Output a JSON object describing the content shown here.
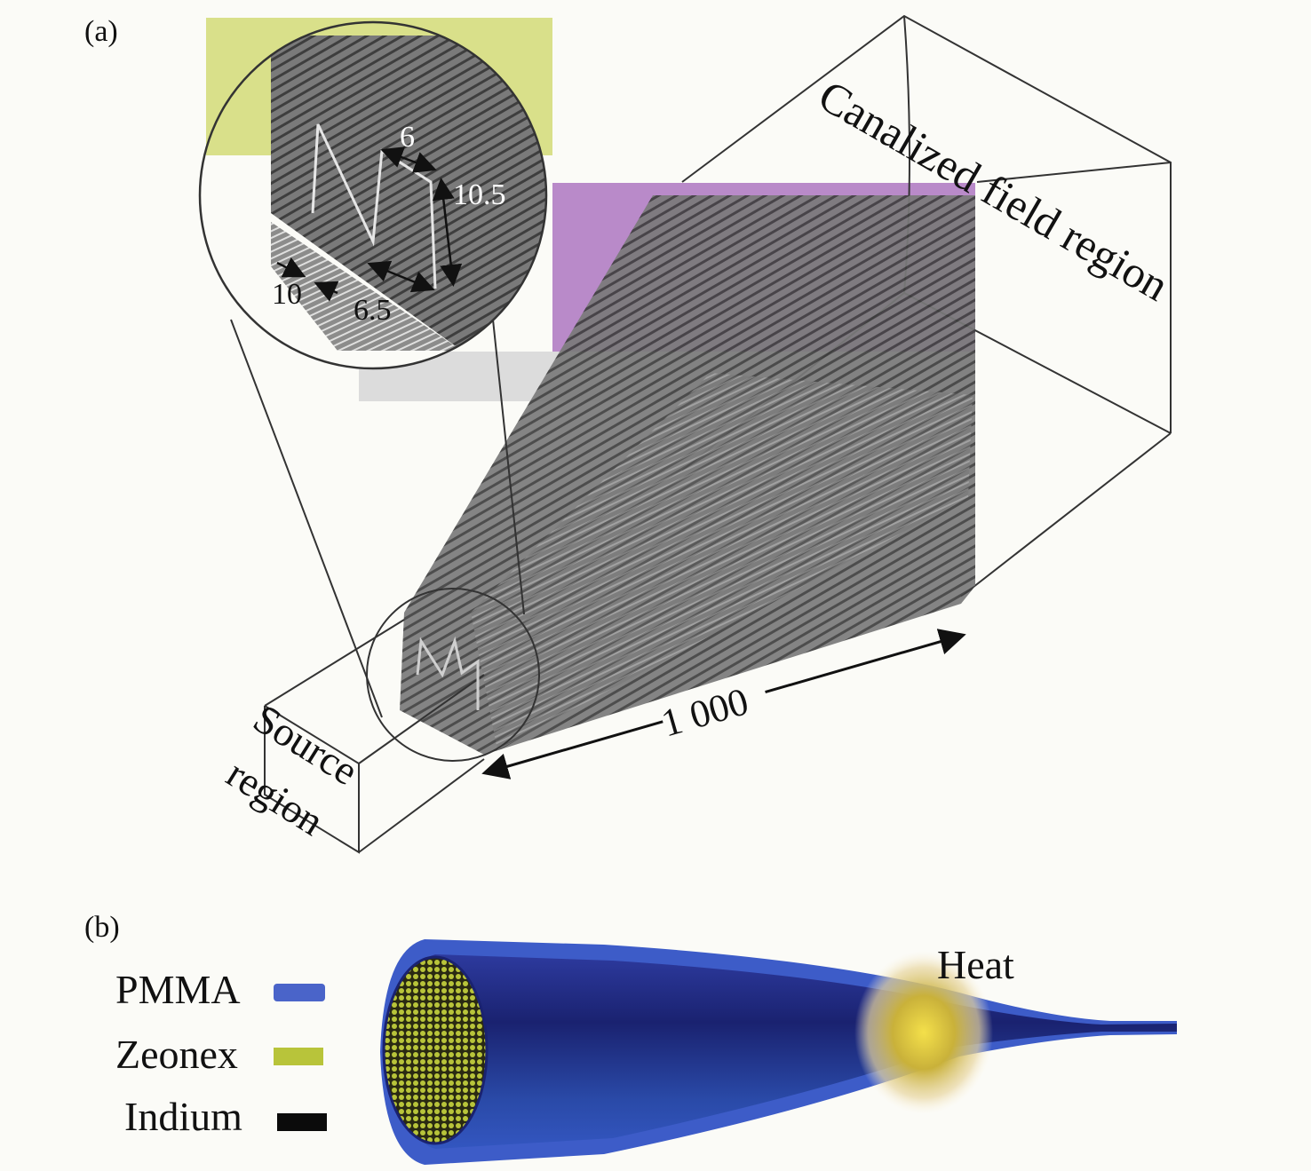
{
  "panel_a": {
    "label": "(a)",
    "canalized_region_label": "Canalized field region",
    "source_region_line1": "Source",
    "source_region_line2": "region",
    "length_label": "1 000",
    "inset_dims": {
      "d6": "6",
      "d10_5": "10.5",
      "d10": "10",
      "d6_5": "6.5"
    },
    "highlight_colors": {
      "yellow": "#d9e08a",
      "purple": "#b98ac9",
      "gray": "#dcdcdc"
    }
  },
  "panel_b": {
    "label": "(b)",
    "heat_label": "Heat",
    "legend": [
      {
        "name": "PMMA",
        "color": "#4a64c9"
      },
      {
        "name": "Zeonex",
        "color": "#b8c43a"
      },
      {
        "name": "Indium",
        "color": "#0b0b0b"
      }
    ]
  }
}
